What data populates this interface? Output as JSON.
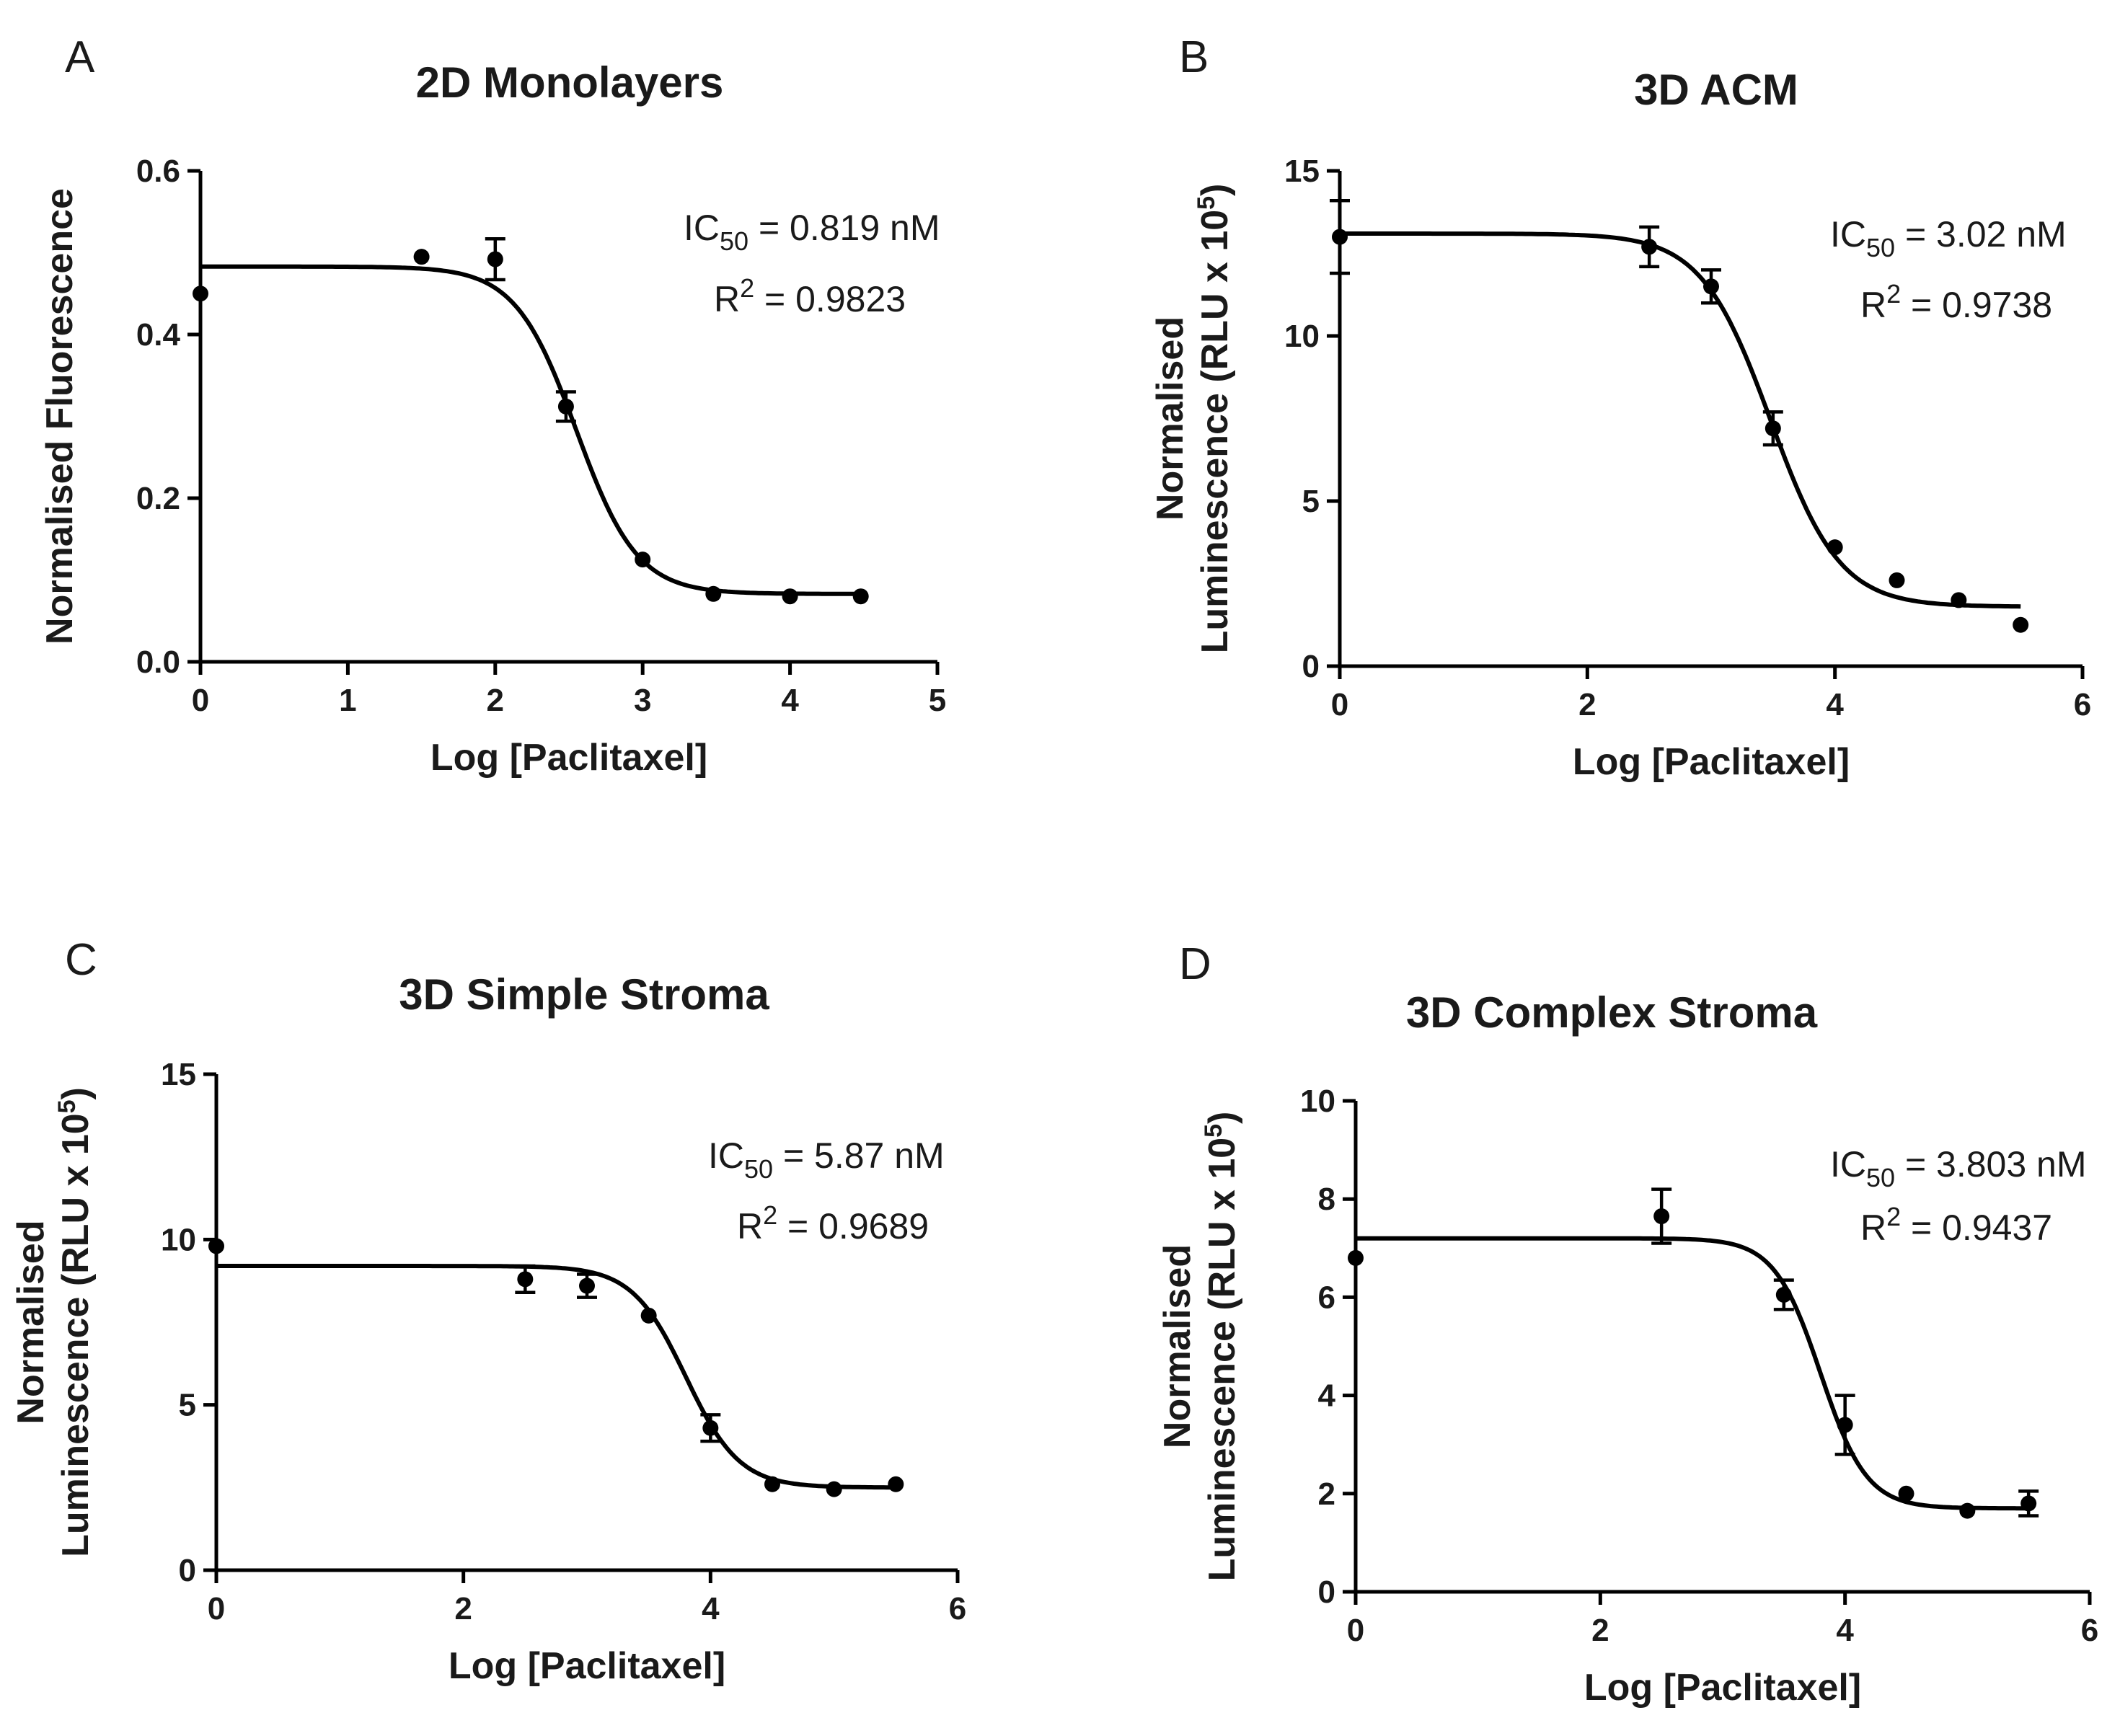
{
  "chart_data": [
    {
      "panel": "A",
      "type": "scatter",
      "title": "2D Monolayers",
      "xlabel": "Log [Paclitaxel]",
      "ylabel": "Normalised Fluorescence",
      "xlim": [
        0,
        5
      ],
      "ylim": [
        0,
        0.6
      ],
      "xticks": [
        "0",
        "1",
        "2",
        "3",
        "4",
        "5"
      ],
      "yticks": [
        "0.0",
        "0.2",
        "0.4",
        "0.6"
      ],
      "xtick_values": [
        0,
        1,
        2,
        3,
        4,
        5
      ],
      "ytick_values": [
        0,
        0.2,
        0.4,
        0.6
      ],
      "ic50_label": "IC",
      "ic50_sub": "50",
      "ic50_value": "= 0.819 nM",
      "r2_label": "R",
      "r2_sup": "2",
      "r2_value": "= 0.9823",
      "points": [
        {
          "x": 0,
          "y": 0.45,
          "err": 0
        },
        {
          "x": 1.5,
          "y": 0.495,
          "err": 0
        },
        {
          "x": 2,
          "y": 0.492,
          "err": 0.025
        },
        {
          "x": 2.48,
          "y": 0.312,
          "err": 0.018
        },
        {
          "x": 3,
          "y": 0.125,
          "err": 0
        },
        {
          "x": 3.48,
          "y": 0.083,
          "err": 0
        },
        {
          "x": 4,
          "y": 0.08,
          "err": 0
        },
        {
          "x": 4.48,
          "y": 0.08,
          "err": 0
        }
      ],
      "fit": {
        "top": 0.483,
        "bottom": 0.083,
        "logIC50": 2.55,
        "hill": 2.1
      }
    },
    {
      "panel": "B",
      "type": "scatter",
      "title": "3D ACM",
      "xlabel": "Log [Paclitaxel]",
      "ylabel_line1": "Normalised",
      "ylabel_line2": "Luminescence (RLU x 10",
      "ylabel_sup": "5",
      "ylabel_close": ")",
      "xlim": [
        0,
        6
      ],
      "ylim": [
        0,
        15
      ],
      "xticks": [
        "0",
        "2",
        "4",
        "6"
      ],
      "yticks": [
        "0",
        "5",
        "10",
        "15"
      ],
      "xtick_values": [
        0,
        2,
        4,
        6
      ],
      "ytick_values": [
        0,
        5,
        10,
        15
      ],
      "ic50_label": "IC",
      "ic50_sub": "50",
      "ic50_value": "= 3.02 nM",
      "r2_label": "R",
      "r2_sup": "2",
      "r2_value": "= 0.9738",
      "points": [
        {
          "x": 0,
          "y": 13.0,
          "err": 1.1
        },
        {
          "x": 2.5,
          "y": 12.7,
          "err": 0.6
        },
        {
          "x": 3.0,
          "y": 11.5,
          "err": 0.5
        },
        {
          "x": 3.5,
          "y": 7.2,
          "err": 0.5
        },
        {
          "x": 4.0,
          "y": 3.6,
          "err": 0
        },
        {
          "x": 4.5,
          "y": 2.6,
          "err": 0
        },
        {
          "x": 5.0,
          "y": 2.0,
          "err": 0
        },
        {
          "x": 5.5,
          "y": 1.25,
          "err": 0
        }
      ],
      "fit": {
        "top": 13.1,
        "bottom": 1.8,
        "logIC50": 3.48,
        "hill": 1.55
      }
    },
    {
      "panel": "C",
      "type": "scatter",
      "title": "3D Simple Stroma",
      "xlabel": "Log [Paclitaxel]",
      "ylabel_line1": "Normalised",
      "ylabel_line2": "Luminescence (RLU x 10",
      "ylabel_sup": "5",
      "ylabel_close": ")",
      "xlim": [
        0,
        6
      ],
      "ylim": [
        0,
        15
      ],
      "xticks": [
        "0",
        "2",
        "4",
        "6"
      ],
      "yticks": [
        "0",
        "5",
        "10",
        "15"
      ],
      "xtick_values": [
        0,
        2,
        4,
        6
      ],
      "ytick_values": [
        0,
        5,
        10,
        15
      ],
      "ic50_label": "IC",
      "ic50_sub": "50",
      "ic50_value": "= 5.87 nM",
      "r2_label": "R",
      "r2_sup": "2",
      "r2_value": "= 0.9689",
      "points": [
        {
          "x": 0,
          "y": 9.8,
          "err": 0
        },
        {
          "x": 2.5,
          "y": 8.8,
          "err": 0.4
        },
        {
          "x": 3.0,
          "y": 8.6,
          "err": 0.35
        },
        {
          "x": 3.5,
          "y": 7.7,
          "err": 0
        },
        {
          "x": 4.0,
          "y": 4.3,
          "err": 0.4
        },
        {
          "x": 4.5,
          "y": 2.6,
          "err": 0
        },
        {
          "x": 5.0,
          "y": 2.45,
          "err": 0
        },
        {
          "x": 5.5,
          "y": 2.6,
          "err": 0
        }
      ],
      "fit": {
        "top": 9.2,
        "bottom": 2.5,
        "logIC50": 3.8,
        "hill": 2.0
      }
    },
    {
      "panel": "D",
      "type": "scatter",
      "title": "3D Complex Stroma",
      "xlabel": "Log [Paclitaxel]",
      "ylabel_line1": "Normalised",
      "ylabel_line2": "Luminescence (RLU x 10",
      "ylabel_sup": "5",
      "ylabel_close": ")",
      "xlim": [
        0,
        6
      ],
      "ylim": [
        0,
        10
      ],
      "xticks": [
        "0",
        "2",
        "4",
        "6"
      ],
      "yticks": [
        "0",
        "2",
        "4",
        "6",
        "8",
        "10"
      ],
      "xtick_values": [
        0,
        2,
        4,
        6
      ],
      "ytick_values": [
        0,
        2,
        4,
        6,
        8,
        10
      ],
      "ic50_label": "IC",
      "ic50_sub": "50",
      "ic50_value": "= 3.803 nM",
      "r2_label": "R",
      "r2_sup": "2",
      "r2_value": "= 0.9437",
      "points": [
        {
          "x": 0,
          "y": 6.8,
          "err": 0
        },
        {
          "x": 2.5,
          "y": 7.65,
          "err": 0.55
        },
        {
          "x": 3.5,
          "y": 6.05,
          "err": 0.3
        },
        {
          "x": 4.0,
          "y": 3.4,
          "err": 0.6
        },
        {
          "x": 4.5,
          "y": 2.0,
          "err": 0
        },
        {
          "x": 5.0,
          "y": 1.65,
          "err": 0
        },
        {
          "x": 5.5,
          "y": 1.8,
          "err": 0.25
        }
      ],
      "fit": {
        "top": 7.2,
        "bottom": 1.7,
        "logIC50": 3.8,
        "hill": 2.3
      }
    }
  ]
}
